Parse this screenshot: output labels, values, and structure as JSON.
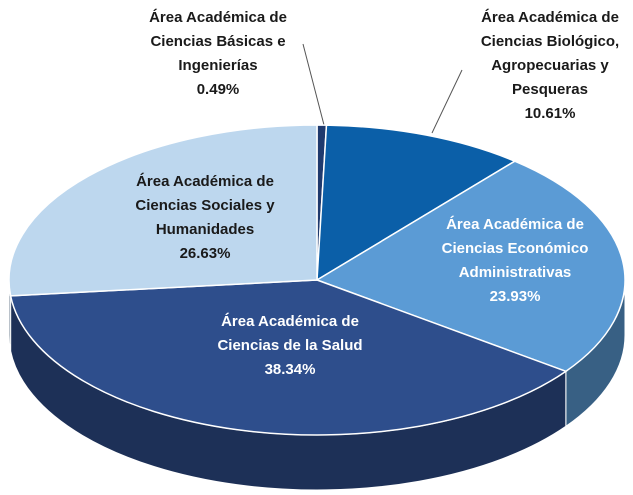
{
  "chart_data": {
    "type": "pie3d",
    "categories": [
      "Área Académica de\nCiencias Básicas e\nIngenierías",
      "Área Académica de\nCiencias Biológico,\nAgropecuarias y\nPesqueras",
      "Área Académica de\nCiencias Económico\nAdministrativas",
      "Área Académica de\nCiencias de la Salud",
      "Área Académica de\nCiencias Sociales y\nHumanidades"
    ],
    "values": [
      0.49,
      10.61,
      23.93,
      38.34,
      26.63
    ],
    "value_labels": [
      "0.49%",
      "10.61%",
      "23.93%",
      "38.34%",
      "26.63%"
    ],
    "colors": [
      "#1f3a6e",
      "#0b5fa8",
      "#5b9bd5",
      "#2e4e8c",
      "#bdd7ee"
    ]
  }
}
